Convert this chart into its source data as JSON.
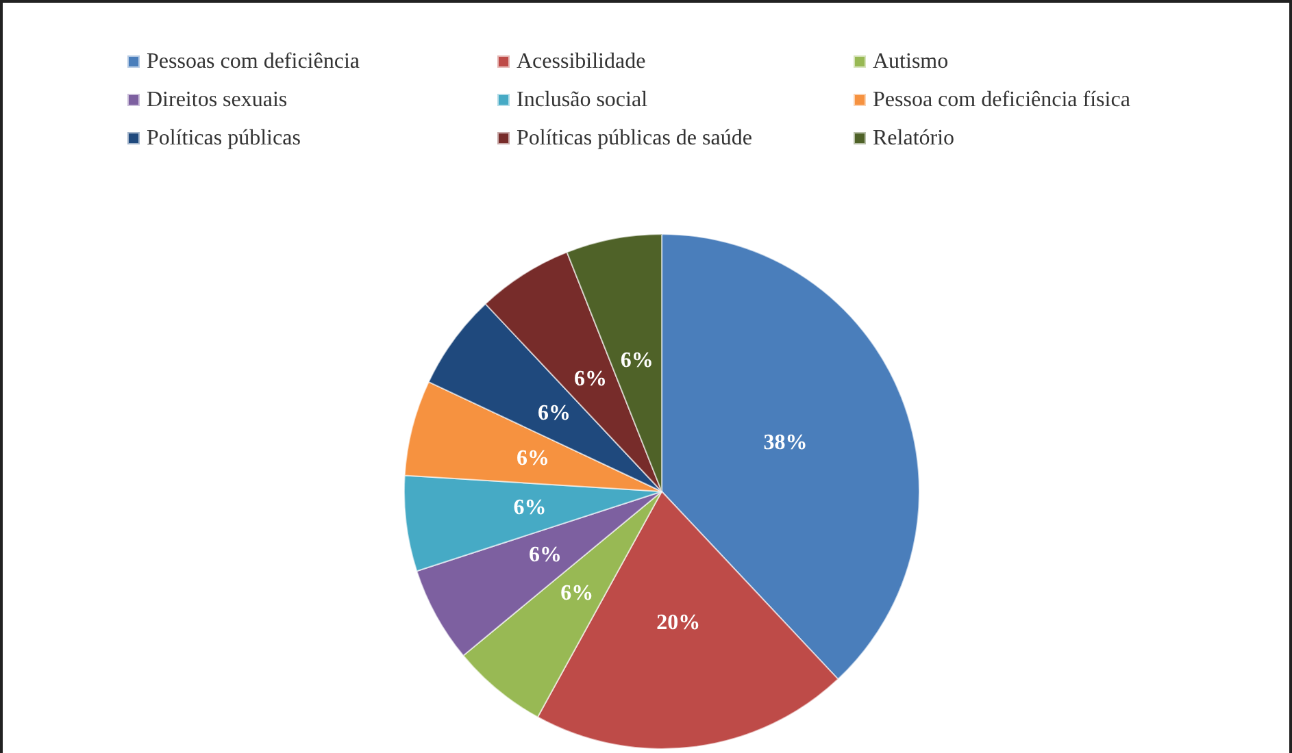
{
  "chart_data": {
    "type": "pie",
    "categories": [
      "Pessoas com deficiência",
      "Acessibilidade",
      "Autismo",
      "Direitos sexuais",
      "Inclusão social",
      "Pessoa com deficiência física",
      "Políticas públicas",
      "Políticas públicas de saúde",
      "Relatório"
    ],
    "values": [
      38,
      20,
      6,
      6,
      6,
      6,
      6,
      6,
      6
    ],
    "colors": [
      "#4a7ebb",
      "#be4b48",
      "#98b954",
      "#7d60a0",
      "#46aac5",
      "#f69240",
      "#1f497d",
      "#772c2a",
      "#4f6228"
    ],
    "value_labels": [
      "38%",
      "20%",
      "6%",
      "6%",
      "6%",
      "6%",
      "6%",
      "6%",
      "6%"
    ],
    "legend": "top"
  }
}
